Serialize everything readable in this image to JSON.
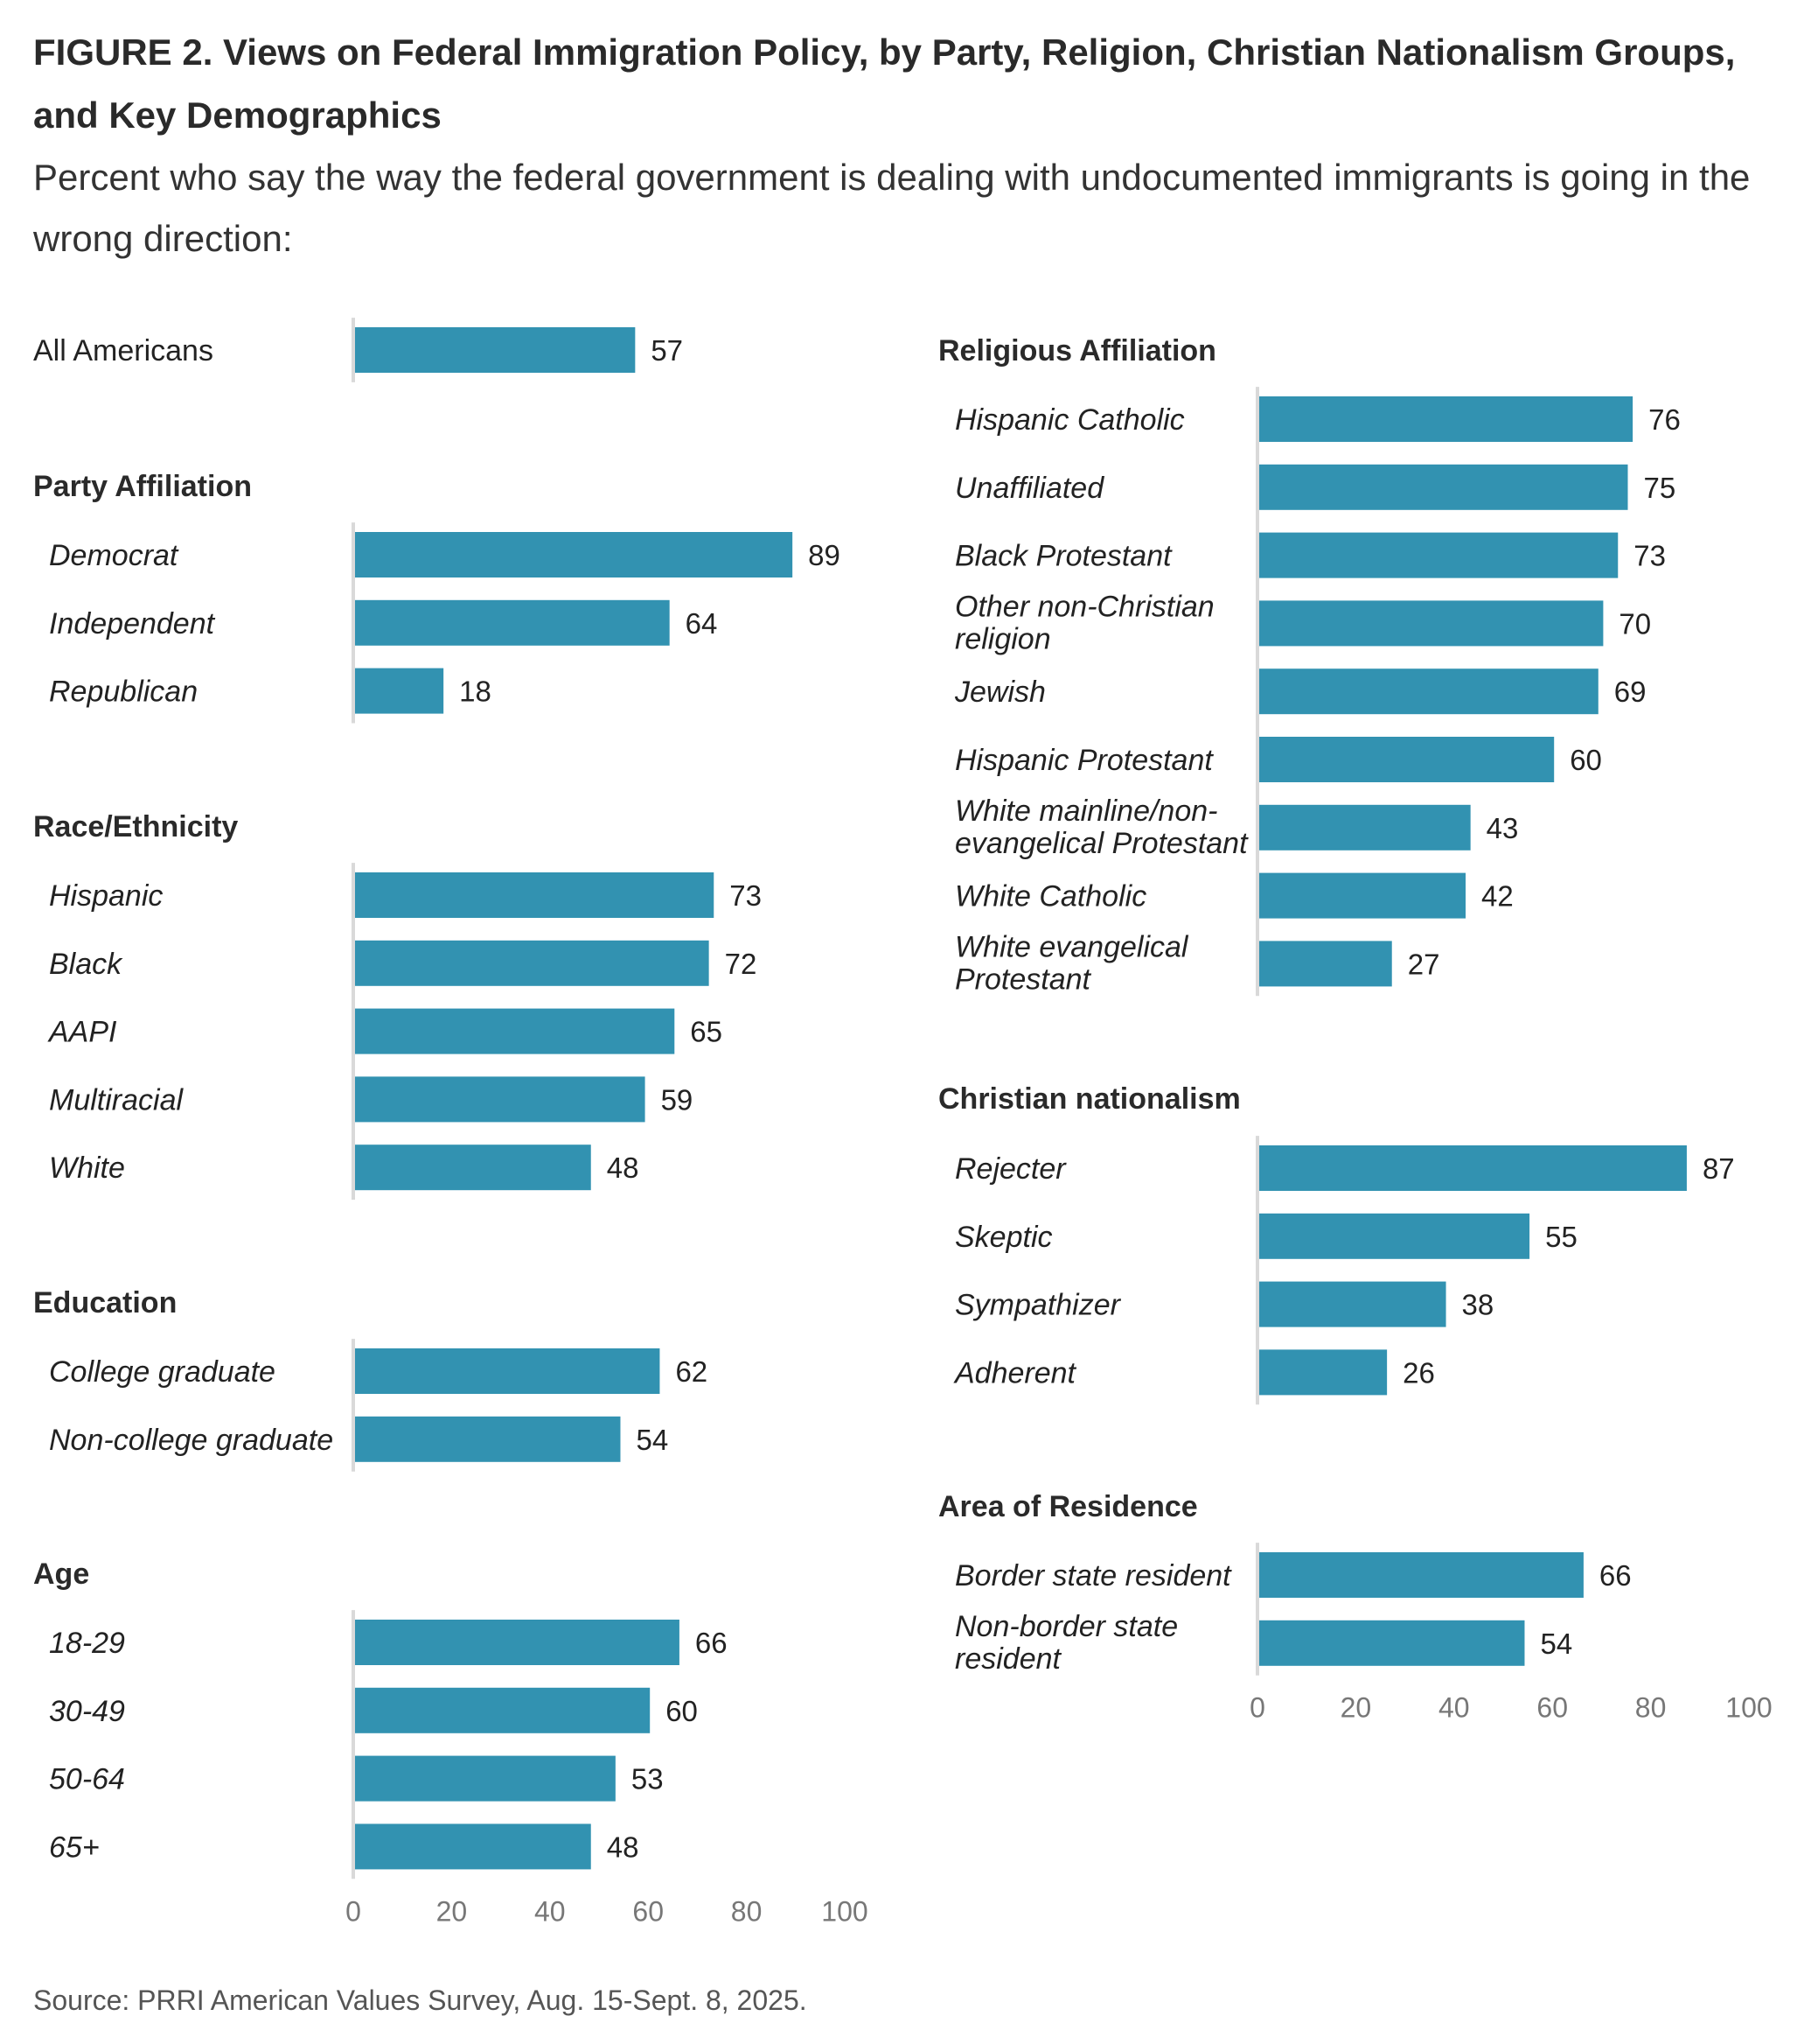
{
  "title": "FIGURE 2. Views on Federal Immigration Policy, by Party, Religion, Christian Nationalism Groups, and Key Demographics",
  "subtitle": "Percent who say the way the federal government is dealing with undocumented immigrants is going in the wrong direction:",
  "source": "Source: PRRI American Values Survey, Aug. 15-Sept. 8, 2025.",
  "colors": {
    "bar": "#3292B1",
    "axis": "#d9d9d9",
    "tick": "#777777",
    "text": "#222222"
  },
  "chart_data": {
    "type": "bar",
    "orientation": "horizontal",
    "xlim": [
      0,
      100
    ],
    "xticks": [
      "0",
      "20",
      "40",
      "60",
      "80",
      "100"
    ],
    "panels": [
      {
        "column": "left",
        "heading": "",
        "italic": false,
        "categories": [
          "All Americans"
        ],
        "values": [
          57
        ]
      },
      {
        "column": "left",
        "heading": "Party Affiliation",
        "italic": true,
        "categories": [
          "Democrat",
          "Independent",
          "Republican"
        ],
        "values": [
          89,
          64,
          18
        ]
      },
      {
        "column": "left",
        "heading": "Race/Ethnicity",
        "italic": true,
        "categories": [
          "Hispanic",
          "Black",
          "AAPI",
          "Multiracial",
          "White"
        ],
        "values": [
          73,
          72,
          65,
          59,
          48
        ]
      },
      {
        "column": "left",
        "heading": "Education",
        "italic": true,
        "categories": [
          "College graduate",
          "Non-college graduate"
        ],
        "values": [
          62,
          54
        ]
      },
      {
        "column": "left",
        "heading": "Age",
        "italic": true,
        "categories": [
          "18-29",
          "30-49",
          "50-64",
          "65+"
        ],
        "values": [
          66,
          60,
          53,
          48
        ],
        "axis": true
      },
      {
        "column": "right",
        "heading": "Religious Affiliation",
        "italic": true,
        "categories": [
          "Hispanic Catholic",
          "Unaffiliated",
          "Black Protestant",
          "Other non-Christian religion",
          "Jewish",
          "Hispanic Protestant",
          "White mainline/non-evangelical Protestant",
          "White Catholic",
          "White evangelical Protestant"
        ],
        "values": [
          76,
          75,
          73,
          70,
          69,
          60,
          43,
          42,
          27
        ]
      },
      {
        "column": "right",
        "heading": "Christian nationalism",
        "italic": true,
        "categories": [
          "Rejecter",
          "Skeptic",
          "Sympathizer",
          "Adherent"
        ],
        "values": [
          87,
          55,
          38,
          26
        ]
      },
      {
        "column": "right",
        "heading": "Area of Residence",
        "italic": true,
        "categories": [
          "Border state resident",
          "Non-border state resident"
        ],
        "values": [
          66,
          54
        ],
        "axis": true
      }
    ]
  }
}
